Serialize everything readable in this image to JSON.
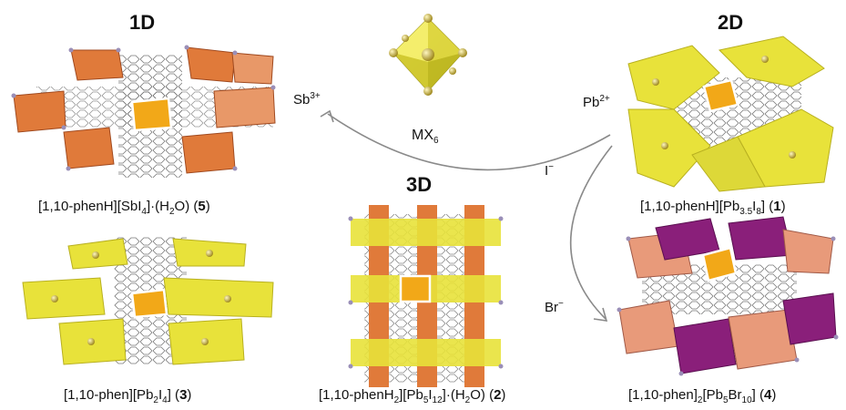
{
  "headers": {
    "one_d": "1D",
    "two_d": "2D",
    "three_d": "3D"
  },
  "center": {
    "unit_base": "MX",
    "unit_sub": "6"
  },
  "ions": {
    "sb": {
      "base": "Sb",
      "sup": "3+"
    },
    "pb": {
      "base": "Pb",
      "sup": "2+"
    },
    "i": {
      "base": "I",
      "sup": "−"
    },
    "br": {
      "base": "Br",
      "sup": "−"
    }
  },
  "compounds": {
    "c5": {
      "a": "[1,10-phenH][SbI",
      "s1": "4",
      "b": "]·(H",
      "s2": "2",
      "c": "O) (",
      "num": "5",
      "d": ")"
    },
    "c1": {
      "a": "[1,10-phenH][Pb",
      "s1": "3.5",
      "b": "I",
      "s2": "8",
      "c": "] (",
      "num": "1",
      "d": ")"
    },
    "c3": {
      "a": "[1,10-phen][Pb",
      "s1": "2",
      "b": "I",
      "s2": "4",
      "c": "] (",
      "num": "3",
      "d": ")"
    },
    "c2": {
      "a": "[1,10-phenH",
      "s1": "2",
      "b": "][Pb",
      "s2": "5",
      "c": "I",
      "s3": "12",
      "e": "]·(H",
      "s4": "2",
      "f": "O) (",
      "num": "2",
      "d": ")"
    },
    "c4": {
      "a": "[1,10-phen]",
      "s1": "2",
      "b": "[Pb",
      "s2": "5",
      "c": "Br",
      "s3": "10",
      "e": "] (",
      "num": "4",
      "d": ")"
    }
  },
  "colors": {
    "yellow": "#e8e23a",
    "orange": "#e07a3a",
    "salmon": "#e89a7a",
    "purple": "#8a1f7a",
    "highlight": "#f2a818",
    "atom": "#b8a030",
    "halide": "#9a8fb8"
  }
}
